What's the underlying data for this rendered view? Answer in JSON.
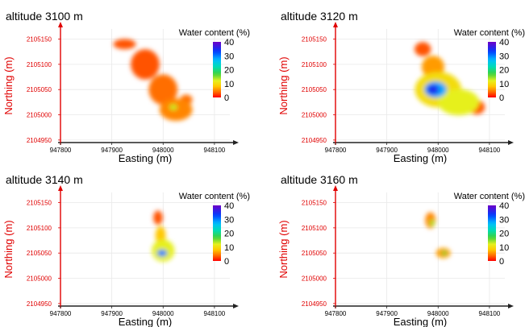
{
  "chart_data": [
    {
      "type": "heatmap",
      "title": "altitude 3100 m",
      "xlabel": "Easting (m)",
      "ylabel": "Northing (m)",
      "x_ticks": [
        "947800",
        "947900",
        "948000",
        "948100"
      ],
      "y_ticks": [
        "2105150",
        "2105100",
        "2105050",
        "2105000",
        "2104950"
      ],
      "xlim": [
        947800,
        948130
      ],
      "ylim": [
        2104945,
        2105170
      ],
      "colorbar": {
        "title": "Water content (%)",
        "ticks": [
          "40",
          "30",
          "20",
          "10",
          "0"
        ],
        "range": [
          0,
          40
        ]
      },
      "hotspots": [
        {
          "x": 947925,
          "y": 2105140,
          "rx": 22,
          "ry": 10,
          "value": 3
        },
        {
          "x": 947965,
          "y": 2105100,
          "rx": 28,
          "ry": 30,
          "value": 3
        },
        {
          "x": 948000,
          "y": 2105050,
          "rx": 28,
          "ry": 30,
          "value": 4
        },
        {
          "x": 948025,
          "y": 2105010,
          "rx": 32,
          "ry": 22,
          "value": 5
        },
        {
          "x": 948020,
          "y": 2105015,
          "rx": 8,
          "ry": 6,
          "value": 13
        },
        {
          "x": 948045,
          "y": 2105030,
          "rx": 12,
          "ry": 10,
          "value": 4
        }
      ]
    },
    {
      "type": "heatmap",
      "title": "altitude 3120 m",
      "xlabel": "Easting (m)",
      "ylabel": "Northing (m)",
      "x_ticks": [
        "947800",
        "947900",
        "948000",
        "948100"
      ],
      "y_ticks": [
        "2105150",
        "2105100",
        "2105050",
        "2105000",
        "2104950"
      ],
      "xlim": [
        947800,
        948130
      ],
      "ylim": [
        2104945,
        2105170
      ],
      "colorbar": {
        "title": "Water content (%)",
        "ticks": [
          "40",
          "30",
          "20",
          "10",
          "0"
        ],
        "range": [
          0,
          40
        ]
      },
      "hotspots": [
        {
          "x": 947970,
          "y": 2105130,
          "rx": 16,
          "ry": 14,
          "value": 3
        },
        {
          "x": 947990,
          "y": 2105095,
          "rx": 22,
          "ry": 22,
          "value": 6
        },
        {
          "x": 948000,
          "y": 2105050,
          "rx": 45,
          "ry": 35,
          "value": 10
        },
        {
          "x": 948040,
          "y": 2105025,
          "rx": 40,
          "ry": 26,
          "value": 12
        },
        {
          "x": 948075,
          "y": 2105015,
          "rx": 16,
          "ry": 14,
          "value": 3
        },
        {
          "x": 947995,
          "y": 2105050,
          "rx": 22,
          "ry": 16,
          "value": 28
        },
        {
          "x": 947990,
          "y": 2105050,
          "rx": 12,
          "ry": 10,
          "value": 35
        }
      ]
    },
    {
      "type": "heatmap",
      "title": "altitude 3140 m",
      "xlabel": "Easting (m)",
      "ylabel": "Northing (m)",
      "x_ticks": [
        "947800",
        "947900",
        "948000",
        "948100"
      ],
      "y_ticks": [
        "2105150",
        "2105100",
        "2105050",
        "2105000",
        "2104950"
      ],
      "xlim": [
        947800,
        948130
      ],
      "ylim": [
        2104945,
        2105170
      ],
      "colorbar": {
        "title": "Water content (%)",
        "ticks": [
          "40",
          "30",
          "20",
          "10",
          "0"
        ],
        "range": [
          0,
          40
        ]
      },
      "hotspots": [
        {
          "x": 947990,
          "y": 2105120,
          "rx": 9,
          "ry": 14,
          "value": 3
        },
        {
          "x": 947995,
          "y": 2105085,
          "rx": 10,
          "ry": 18,
          "value": 8
        },
        {
          "x": 948000,
          "y": 2105055,
          "rx": 22,
          "ry": 22,
          "value": 12
        },
        {
          "x": 947998,
          "y": 2105050,
          "rx": 10,
          "ry": 7,
          "value": 30
        }
      ]
    },
    {
      "type": "heatmap",
      "title": "altitude 3160 m",
      "xlabel": "Easting (m)",
      "ylabel": "Northing (m)",
      "x_ticks": [
        "947800",
        "947900",
        "948000",
        "948100"
      ],
      "y_ticks": [
        "2105150",
        "2105100",
        "2105050",
        "2105000",
        "2104950"
      ],
      "xlim": [
        947800,
        948130
      ],
      "ylim": [
        2104945,
        2105170
      ],
      "colorbar": {
        "title": "Water content (%)",
        "ticks": [
          "40",
          "30",
          "20",
          "10",
          "0"
        ],
        "range": [
          0,
          40
        ]
      },
      "hotspots": [
        {
          "x": 947985,
          "y": 2105115,
          "rx": 10,
          "ry": 16,
          "value": 5
        },
        {
          "x": 947988,
          "y": 2105110,
          "rx": 5,
          "ry": 7,
          "value": 14
        },
        {
          "x": 948010,
          "y": 2105050,
          "rx": 14,
          "ry": 10,
          "value": 6
        },
        {
          "x": 948012,
          "y": 2105050,
          "rx": 5,
          "ry": 5,
          "value": 16
        }
      ]
    }
  ]
}
